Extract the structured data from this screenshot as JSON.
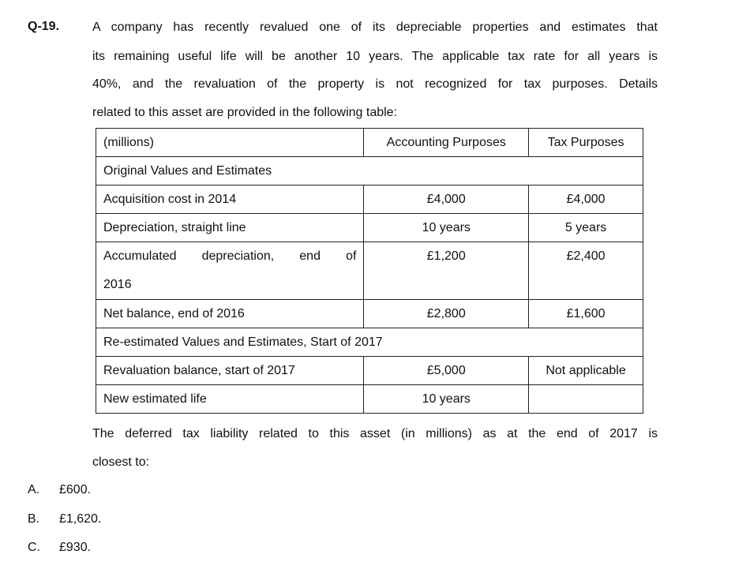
{
  "question": {
    "number": "Q-19.",
    "lines": [
      "A company has recently revalued one of its depreciable properties and estimates that",
      "its remaining useful life will be another 10 years. The applicable tax rate for all years is",
      "40%, and the revaluation of the property is not recognized for tax purposes. Details",
      "related to this asset are provided in the following table:"
    ]
  },
  "table": {
    "headers": [
      "(millions)",
      "Accounting Purposes",
      "Tax Purposes"
    ],
    "section1": "Original Values and Estimates",
    "rows1": [
      [
        "Acquisition cost in 2014",
        "£4,000",
        "£4,000"
      ],
      [
        "Depreciation, straight line",
        "10 years",
        "5 years"
      ],
      [
        "Accumulated depreciation, end of",
        "£1,200",
        "£2,400"
      ],
      [
        "Net balance, end of 2016",
        "£2,800",
        "£1,600"
      ]
    ],
    "accum_line2": "2016",
    "section2": "Re-estimated Values and Estimates, Start of 2017",
    "rows2": [
      [
        "Revaluation balance, start of 2017",
        "£5,000",
        "Not applicable"
      ],
      [
        "New estimated life",
        "10 years",
        ""
      ]
    ]
  },
  "prompt": {
    "lines": [
      "The deferred tax liability related to this asset (in millions) as at the end of 2017 is",
      "closest to:"
    ]
  },
  "options": [
    {
      "letter": "A.",
      "text": "£600."
    },
    {
      "letter": "B.",
      "text": "£1,620."
    },
    {
      "letter": "C.",
      "text": "£930."
    }
  ]
}
